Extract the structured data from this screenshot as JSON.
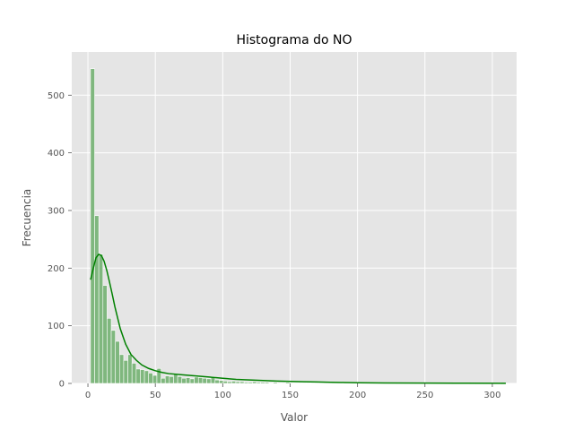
{
  "chart_data": {
    "type": "bar",
    "title": "Histograma do NO",
    "xlabel": "Valor",
    "ylabel": "Frecuencia",
    "xlim": [
      -12,
      318
    ],
    "ylim": [
      0,
      575
    ],
    "xticks": [
      0,
      50,
      100,
      150,
      200,
      250,
      300
    ],
    "yticks": [
      0,
      100,
      200,
      300,
      400,
      500
    ],
    "grid": true,
    "colors": {
      "background": "#E5E5E5",
      "grid": "#FFFFFF",
      "bar_fill": "#7FB77E",
      "bar_edge": "#FFFFFF",
      "kde_line": "#008000"
    },
    "bins": {
      "start": 1.9,
      "width": 3.08,
      "counts": [
        546,
        291,
        224,
        170,
        113,
        92,
        73,
        50,
        40,
        50,
        35,
        25,
        24,
        22,
        18,
        14,
        26,
        9,
        13,
        12,
        16,
        12,
        9,
        10,
        8,
        11,
        10,
        9,
        8,
        12,
        6,
        5,
        4,
        3,
        4,
        3,
        3,
        2,
        2,
        3,
        2,
        2,
        2,
        1,
        2,
        1,
        1,
        2,
        1,
        1,
        1,
        1,
        1,
        1,
        1,
        1,
        1,
        0,
        1,
        1,
        0,
        1,
        0,
        0,
        1,
        0,
        0,
        0,
        0,
        0,
        0,
        0,
        0,
        0,
        1,
        0,
        0,
        0,
        0,
        0,
        0,
        0,
        0,
        0,
        0,
        0,
        0,
        0,
        0,
        0,
        0,
        0,
        0,
        0,
        0,
        0,
        0,
        0,
        1
      ]
    },
    "kde": {
      "x": [
        2,
        4,
        6,
        8,
        10,
        12,
        14,
        16,
        18,
        20,
        24,
        28,
        32,
        36,
        40,
        45,
        50,
        55,
        60,
        70,
        80,
        90,
        100,
        110,
        120,
        130,
        140,
        150,
        160,
        170,
        180,
        190,
        200,
        220,
        250,
        280,
        310
      ],
      "y": [
        180,
        200,
        218,
        224,
        222,
        212,
        196,
        176,
        155,
        133,
        95,
        68,
        50,
        40,
        32,
        26,
        22,
        19,
        17,
        15,
        13,
        11,
        9,
        7,
        6,
        5,
        4,
        3.5,
        3,
        2.5,
        2,
        1.6,
        1.2,
        0.8,
        0.5,
        0.3,
        0.2
      ]
    }
  }
}
